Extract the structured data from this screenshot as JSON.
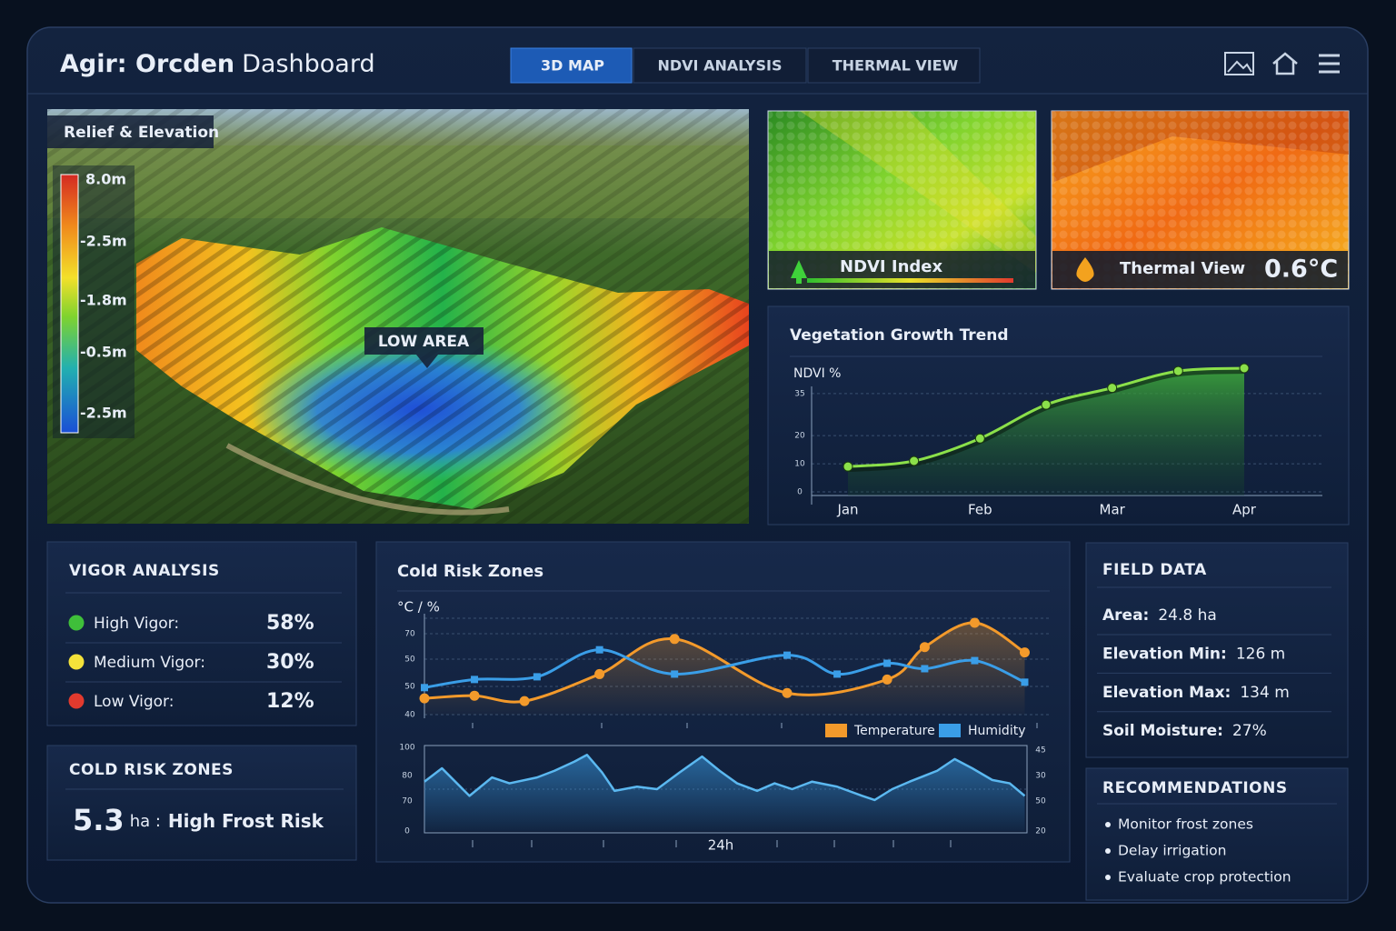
{
  "header": {
    "title_bold": "Agir: Orcden",
    "title_rest": "Dashboard"
  },
  "tabs": [
    "3D MAP",
    "NDVI ANALYSIS",
    "THERMAL VIEW"
  ],
  "map": {
    "label": "Relief & Elevation",
    "legend": [
      "8.0m",
      "-2.5m",
      "-1.8m",
      "-0.5m",
      "-2.5m"
    ],
    "callout": "LOW AREA"
  },
  "ndvi_thumb": {
    "label": "NDVI Index"
  },
  "thermal_thumb": {
    "label": "Thermal View",
    "value": "0.6°C"
  },
  "growth_chart": {
    "type": "line",
    "title": "Vegetation Growth Trend",
    "y_label": "NDVI %",
    "categories": [
      "Jan",
      null,
      "Feb",
      null,
      "Mar",
      null,
      "Apr"
    ],
    "values": [
      9,
      11,
      19,
      31,
      37,
      43,
      44
    ],
    "color": "#8be04a",
    "ylim": [
      0,
      44
    ],
    "yticks": [
      0,
      10,
      20,
      35
    ],
    "grid": true
  },
  "vigor": {
    "title": "VIGOR ANALYSIS",
    "rows": [
      {
        "label": "High Vigor:",
        "value": "58%",
        "color": "#3fbf3a"
      },
      {
        "label": "Medium Vigor:",
        "value": "30%",
        "color": "#f4e23a"
      },
      {
        "label": "Low Vigor:",
        "value": "12%",
        "color": "#e23a2e"
      }
    ]
  },
  "cold_card": {
    "title": "COLD RISK ZONES",
    "value": "5.3",
    "unit": "ha :",
    "label": "High Frost Risk"
  },
  "cold_chart": {
    "type": "line",
    "title": "Cold Risk Zones",
    "y_label": "°C / %",
    "y_labels": [
      "70",
      "50",
      "50",
      "40"
    ],
    "xlim": [
      0,
      25
    ],
    "ylim": [
      40,
      75
    ],
    "series": [
      {
        "name": "Temperature",
        "color": "#f39a2b",
        "x": [
          0,
          2,
          4,
          7,
          10,
          14.5,
          18.5,
          20,
          22,
          24
        ],
        "values": [
          46,
          47,
          45,
          55,
          68,
          48,
          53,
          65,
          74,
          63
        ]
      },
      {
        "name": "Humidity",
        "color": "#3a9ee8",
        "x": [
          0,
          2,
          4.5,
          7,
          10,
          14.5,
          16.5,
          18.5,
          20,
          22,
          24
        ],
        "values": [
          50,
          53,
          54,
          64,
          55,
          62,
          55,
          59,
          57,
          60,
          52
        ]
      }
    ],
    "lower": {
      "x_label": "24h",
      "y_labels": [
        "100",
        "80",
        "70",
        "0"
      ],
      "y2_labels": [
        "45",
        "30",
        "50",
        "20"
      ],
      "ylim": [
        0,
        100
      ],
      "color": "#5bb8f0",
      "x": [
        0,
        0.7,
        1.8,
        2.7,
        3.4,
        4.5,
        5.2,
        6,
        6.5,
        7.1,
        7.6,
        8.5,
        9.3,
        10.2,
        11.1,
        11.8,
        12.5,
        13.3,
        14,
        14.7,
        15.5,
        16.5,
        17.5,
        18,
        18.7,
        19.4,
        20.5,
        21.2,
        21.9,
        22.7,
        23.4,
        24
      ],
      "values": [
        59,
        75,
        42,
        64,
        57,
        64,
        72,
        83,
        91,
        70,
        48,
        53,
        50,
        70,
        89,
        72,
        57,
        48,
        57,
        50,
        59,
        53,
        42,
        37,
        50,
        59,
        72,
        86,
        75,
        61,
        57,
        42
      ]
    }
  },
  "field_data": {
    "title": "FIELD DATA",
    "rows": [
      {
        "label": "Area:",
        "value": "24.8 ha"
      },
      {
        "label": "Elevation Min:",
        "value": "126 m"
      },
      {
        "label": "Elevation Max:",
        "value": "134 m"
      },
      {
        "label": "Soil Moisture:",
        "value": "27%"
      }
    ]
  },
  "recommendations": {
    "title": "RECOMMENDATIONS",
    "items": [
      "Monitor frost zones",
      "Delay irrigation",
      "Evaluate crop protection"
    ]
  }
}
